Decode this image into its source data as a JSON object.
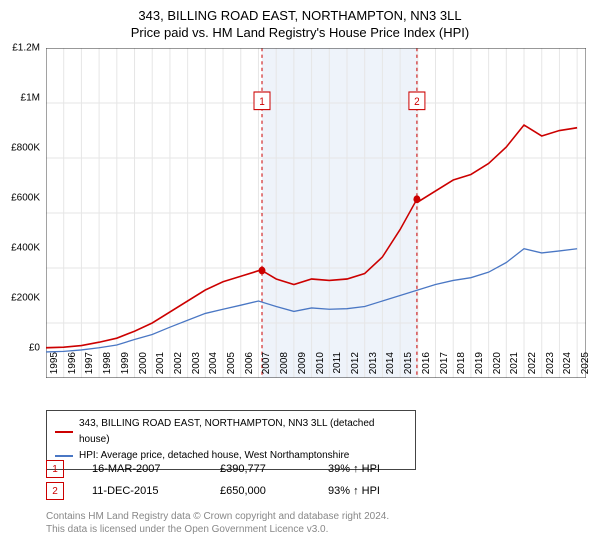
{
  "titles": {
    "line1": "343, BILLING ROAD EAST, NORTHAMPTON, NN3 3LL",
    "line2": "Price paid vs. HM Land Registry's House Price Index (HPI)"
  },
  "chart": {
    "type": "line",
    "background_color": "#ffffff",
    "plot_border_color": "#444444",
    "grid_color": "#e6e6e6",
    "highlight_band": {
      "x_from": 2007.2,
      "x_to": 2015.95,
      "fill": "#eef3fa"
    },
    "xlim": [
      1995,
      2025.5
    ],
    "ylim": [
      0,
      1200000
    ],
    "yticks": [
      0,
      200000,
      400000,
      600000,
      800000,
      1000000,
      1200000
    ],
    "ytick_labels": [
      "£0",
      "£200K",
      "£400K",
      "£600K",
      "£800K",
      "£1M",
      "£1.2M"
    ],
    "xticks": [
      1995,
      1996,
      1997,
      1998,
      1999,
      2000,
      2001,
      2002,
      2003,
      2004,
      2005,
      2006,
      2007,
      2008,
      2009,
      2010,
      2011,
      2012,
      2013,
      2014,
      2015,
      2016,
      2017,
      2018,
      2019,
      2020,
      2021,
      2022,
      2023,
      2024,
      2025
    ],
    "axis_fontsize": 10,
    "series": [
      {
        "name": "343, BILLING ROAD EAST, NORTHAMPTON, NN3 3LL (detached house)",
        "color": "#cc0000",
        "line_width": 1.5,
        "points": [
          [
            1995,
            110000
          ],
          [
            1996,
            112000
          ],
          [
            1997,
            118000
          ],
          [
            1998,
            130000
          ],
          [
            1999,
            145000
          ],
          [
            2000,
            170000
          ],
          [
            2001,
            200000
          ],
          [
            2002,
            240000
          ],
          [
            2003,
            280000
          ],
          [
            2004,
            320000
          ],
          [
            2005,
            350000
          ],
          [
            2006,
            370000
          ],
          [
            2007,
            390000
          ],
          [
            2007.2,
            390777
          ],
          [
            2008,
            360000
          ],
          [
            2009,
            340000
          ],
          [
            2010,
            360000
          ],
          [
            2011,
            355000
          ],
          [
            2012,
            360000
          ],
          [
            2013,
            380000
          ],
          [
            2014,
            440000
          ],
          [
            2015,
            540000
          ],
          [
            2015.95,
            650000
          ],
          [
            2016,
            640000
          ],
          [
            2017,
            680000
          ],
          [
            2018,
            720000
          ],
          [
            2019,
            740000
          ],
          [
            2020,
            780000
          ],
          [
            2021,
            840000
          ],
          [
            2022,
            920000
          ],
          [
            2023,
            880000
          ],
          [
            2024,
            900000
          ],
          [
            2025,
            910000
          ]
        ],
        "markers": [
          {
            "x": 2007.2,
            "y": 390777,
            "badge": "1",
            "badge_y": 1040000
          },
          {
            "x": 2015.95,
            "y": 650000,
            "badge": "2",
            "badge_y": 1040000
          }
        ]
      },
      {
        "name": "HPI: Average price, detached house, West Northamptonshire",
        "color": "#4a77c4",
        "line_width": 1.2,
        "points": [
          [
            1995,
            95000
          ],
          [
            1996,
            97000
          ],
          [
            1997,
            102000
          ],
          [
            1998,
            110000
          ],
          [
            1999,
            120000
          ],
          [
            2000,
            140000
          ],
          [
            2001,
            158000
          ],
          [
            2002,
            185000
          ],
          [
            2003,
            210000
          ],
          [
            2004,
            235000
          ],
          [
            2005,
            250000
          ],
          [
            2006,
            265000
          ],
          [
            2007,
            280000
          ],
          [
            2008,
            260000
          ],
          [
            2009,
            242000
          ],
          [
            2010,
            255000
          ],
          [
            2011,
            250000
          ],
          [
            2012,
            252000
          ],
          [
            2013,
            260000
          ],
          [
            2014,
            280000
          ],
          [
            2015,
            300000
          ],
          [
            2016,
            320000
          ],
          [
            2017,
            340000
          ],
          [
            2018,
            355000
          ],
          [
            2019,
            365000
          ],
          [
            2020,
            385000
          ],
          [
            2021,
            420000
          ],
          [
            2022,
            470000
          ],
          [
            2023,
            455000
          ],
          [
            2024,
            462000
          ],
          [
            2025,
            470000
          ]
        ]
      }
    ]
  },
  "legend": {
    "items": [
      {
        "color": "#cc0000",
        "label": "343, BILLING ROAD EAST, NORTHAMPTON, NN3 3LL (detached house)"
      },
      {
        "color": "#4a77c4",
        "label": "HPI: Average price, detached house, West Northamptonshire"
      }
    ]
  },
  "sales": [
    {
      "badge": "1",
      "date": "16-MAR-2007",
      "price": "£390,777",
      "hpi": "39% ↑ HPI"
    },
    {
      "badge": "2",
      "date": "11-DEC-2015",
      "price": "£650,000",
      "hpi": "93% ↑ HPI"
    }
  ],
  "attribution": {
    "line1": "Contains HM Land Registry data © Crown copyright and database right 2024.",
    "line2": "This data is licensed under the Open Government Licence v3.0."
  }
}
